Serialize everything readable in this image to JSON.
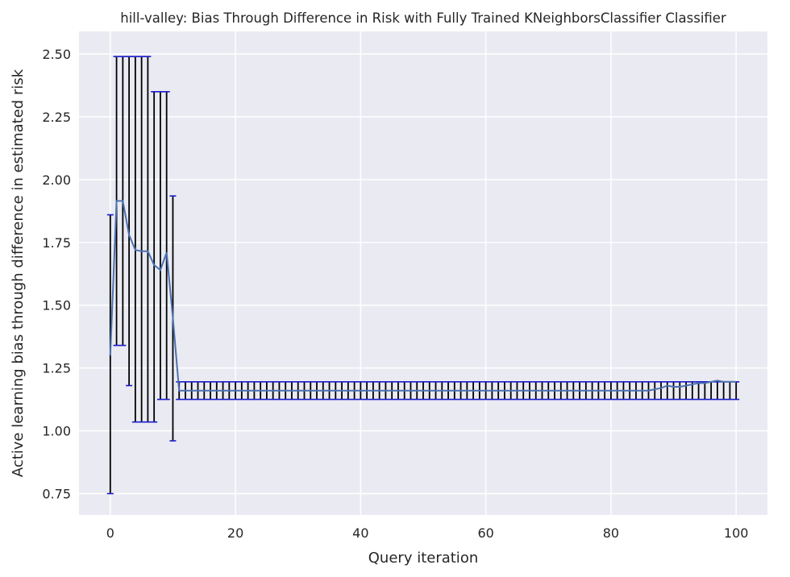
{
  "chart_data": {
    "type": "line",
    "title": "hill-valley: Bias Through Difference in Risk with Fully Trained KNeighborsClassifier Classifier",
    "xlabel": "Query iteration",
    "ylabel": "Active learning bias through difference in estimated risk",
    "xlim": [
      -5,
      105
    ],
    "ylim": [
      0.665,
      2.59
    ],
    "xticks": [
      0,
      20,
      40,
      60,
      80,
      100
    ],
    "yticks": [
      0.75,
      1.0,
      1.25,
      1.5,
      1.75,
      2.0,
      2.25,
      2.5
    ],
    "ytick_labels": [
      "0.75",
      "1.00",
      "1.25",
      "1.50",
      "1.75",
      "2.00",
      "2.25",
      "2.50"
    ],
    "grid": true,
    "background": "#eaeaf2",
    "line_color": "#4c72b0",
    "errorbar_color": "#000000",
    "cap_color": "#1a1acc",
    "series": [
      {
        "x": [
          0,
          1,
          2,
          3,
          4,
          5,
          6,
          7,
          8,
          9,
          10,
          11,
          12,
          13,
          14,
          15,
          16,
          17,
          18,
          19,
          20,
          21,
          22,
          23,
          24,
          25,
          26,
          27,
          28,
          29,
          30,
          31,
          32,
          33,
          34,
          35,
          36,
          37,
          38,
          39,
          40,
          41,
          42,
          43,
          44,
          45,
          46,
          47,
          48,
          49,
          50,
          51,
          52,
          53,
          54,
          55,
          56,
          57,
          58,
          59,
          60,
          61,
          62,
          63,
          64,
          65,
          66,
          67,
          68,
          69,
          70,
          71,
          72,
          73,
          74,
          75,
          76,
          77,
          78,
          79,
          80,
          81,
          82,
          83,
          84,
          85,
          86,
          87,
          88,
          89,
          90,
          91,
          92,
          93,
          94,
          95,
          96,
          97,
          98,
          99,
          100
        ],
        "y": [
          1.3,
          1.915,
          1.915,
          1.78,
          1.72,
          1.715,
          1.715,
          1.66,
          1.64,
          1.71,
          1.45,
          1.16,
          1.16,
          1.16,
          1.16,
          1.16,
          1.16,
          1.16,
          1.16,
          1.16,
          1.16,
          1.16,
          1.16,
          1.16,
          1.16,
          1.16,
          1.16,
          1.16,
          1.16,
          1.16,
          1.16,
          1.16,
          1.16,
          1.16,
          1.16,
          1.16,
          1.16,
          1.16,
          1.16,
          1.16,
          1.16,
          1.16,
          1.16,
          1.16,
          1.16,
          1.16,
          1.16,
          1.16,
          1.16,
          1.16,
          1.16,
          1.16,
          1.16,
          1.16,
          1.16,
          1.16,
          1.16,
          1.16,
          1.16,
          1.16,
          1.16,
          1.16,
          1.16,
          1.16,
          1.16,
          1.16,
          1.16,
          1.16,
          1.16,
          1.16,
          1.16,
          1.16,
          1.16,
          1.16,
          1.16,
          1.16,
          1.16,
          1.16,
          1.16,
          1.16,
          1.16,
          1.16,
          1.16,
          1.16,
          1.16,
          1.16,
          1.16,
          1.165,
          1.17,
          1.18,
          1.175,
          1.175,
          1.18,
          1.185,
          1.19,
          1.19,
          1.195,
          1.2,
          1.195,
          1.195,
          1.195
        ],
        "lower": [
          0.75,
          1.34,
          1.34,
          1.18,
          1.035,
          1.035,
          1.035,
          1.035,
          1.125,
          1.125,
          0.96,
          1.125,
          1.125,
          1.125,
          1.125,
          1.125,
          1.125,
          1.125,
          1.125,
          1.125,
          1.125,
          1.125,
          1.125,
          1.125,
          1.125,
          1.125,
          1.125,
          1.125,
          1.125,
          1.125,
          1.125,
          1.125,
          1.125,
          1.125,
          1.125,
          1.125,
          1.125,
          1.125,
          1.125,
          1.125,
          1.125,
          1.125,
          1.125,
          1.125,
          1.125,
          1.125,
          1.125,
          1.125,
          1.125,
          1.125,
          1.125,
          1.125,
          1.125,
          1.125,
          1.125,
          1.125,
          1.125,
          1.125,
          1.125,
          1.125,
          1.125,
          1.125,
          1.125,
          1.125,
          1.125,
          1.125,
          1.125,
          1.125,
          1.125,
          1.125,
          1.125,
          1.125,
          1.125,
          1.125,
          1.125,
          1.125,
          1.125,
          1.125,
          1.125,
          1.125,
          1.125,
          1.125,
          1.125,
          1.125,
          1.125,
          1.125,
          1.125,
          1.125,
          1.125,
          1.125,
          1.125,
          1.125,
          1.125,
          1.125,
          1.125,
          1.125,
          1.125,
          1.125,
          1.125,
          1.125,
          1.125
        ],
        "upper": [
          1.86,
          2.49,
          2.49,
          2.49,
          2.49,
          2.49,
          2.49,
          2.35,
          2.35,
          2.35,
          1.935,
          1.195,
          1.195,
          1.195,
          1.195,
          1.195,
          1.195,
          1.195,
          1.195,
          1.195,
          1.195,
          1.195,
          1.195,
          1.195,
          1.195,
          1.195,
          1.195,
          1.195,
          1.195,
          1.195,
          1.195,
          1.195,
          1.195,
          1.195,
          1.195,
          1.195,
          1.195,
          1.195,
          1.195,
          1.195,
          1.195,
          1.195,
          1.195,
          1.195,
          1.195,
          1.195,
          1.195,
          1.195,
          1.195,
          1.195,
          1.195,
          1.195,
          1.195,
          1.195,
          1.195,
          1.195,
          1.195,
          1.195,
          1.195,
          1.195,
          1.195,
          1.195,
          1.195,
          1.195,
          1.195,
          1.195,
          1.195,
          1.195,
          1.195,
          1.195,
          1.195,
          1.195,
          1.195,
          1.195,
          1.195,
          1.195,
          1.195,
          1.195,
          1.195,
          1.195,
          1.195,
          1.195,
          1.195,
          1.195,
          1.195,
          1.195,
          1.195,
          1.195,
          1.195,
          1.195,
          1.195,
          1.195,
          1.195,
          1.195,
          1.195,
          1.195,
          1.195,
          1.195,
          1.195,
          1.195,
          1.195
        ]
      }
    ]
  }
}
